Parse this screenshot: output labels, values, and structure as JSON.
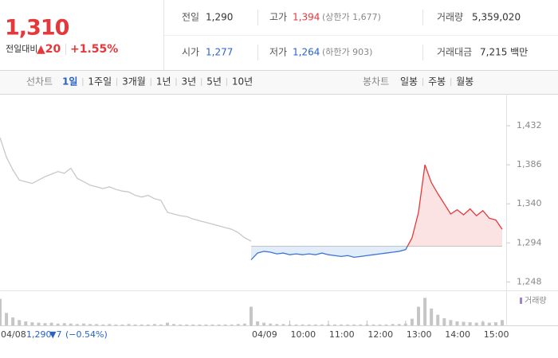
{
  "header": {
    "price": "1,310",
    "change_label": "전일대비",
    "change": "▲20",
    "change_pct": "+1.55%"
  },
  "stats": [
    {
      "label": "전일",
      "value": "1,290"
    },
    {
      "label": "고가",
      "value": "1,394",
      "note": "(상한가 1,677)"
    },
    {
      "label": "거래량",
      "value": "5,359,020"
    },
    {
      "label": "시가",
      "value": "1,277"
    },
    {
      "label": "저가",
      "value": "1,264",
      "note": "(하한가 903)"
    },
    {
      "label": "거래대금",
      "value": "7,215 백만"
    }
  ],
  "toolbar": {
    "line_label": "선차트",
    "line_periods": [
      "1일",
      "1주일",
      "3개월",
      "1년",
      "3년",
      "5년",
      "10년"
    ],
    "selected": 0,
    "candle_label": "봉차트",
    "candle_periods": [
      "일봉",
      "주봉",
      "월봉"
    ]
  },
  "footer": {
    "close": "1,290",
    "change": "▼7",
    "pct": "(−0.54%)"
  },
  "chart_data": {
    "type": "line",
    "xlim": [
      0,
      780
    ],
    "ylim": [
      1238,
      1463
    ],
    "xticks": [
      {
        "value": 0,
        "label": "04/08"
      },
      {
        "value": 390,
        "label": "04/09"
      },
      {
        "value": 450,
        "label": "10:00"
      },
      {
        "value": 510,
        "label": "11:00"
      },
      {
        "value": 570,
        "label": "12:00"
      },
      {
        "value": 630,
        "label": "13:00"
      },
      {
        "value": 690,
        "label": "14:00"
      },
      {
        "value": 750,
        "label": "15:00"
      }
    ],
    "yticks": [
      {
        "value": 1248,
        "label": "1,248"
      },
      {
        "value": 1294,
        "label": "1,294"
      },
      {
        "value": 1340,
        "label": "1,340"
      },
      {
        "value": 1386,
        "label": "1,386"
      },
      {
        "value": 1432,
        "label": "1,432"
      }
    ],
    "base": 1290,
    "series": [
      {
        "color": "#c8c8c8",
        "x": [
          0,
          10,
          20,
          30,
          40,
          50,
          60,
          70,
          80,
          90,
          100,
          110,
          120,
          130,
          140,
          150,
          160,
          170,
          180,
          190,
          200,
          210,
          220,
          230,
          240,
          250,
          260,
          270,
          280,
          290,
          300,
          310,
          320,
          330,
          340,
          350,
          360,
          370,
          380,
          390
        ],
        "values": [
          1418,
          1395,
          1380,
          1368,
          1366,
          1364,
          1368,
          1372,
          1375,
          1378,
          1376,
          1382,
          1370,
          1366,
          1362,
          1360,
          1358,
          1360,
          1357,
          1355,
          1354,
          1350,
          1348,
          1350,
          1346,
          1344,
          1330,
          1328,
          1326,
          1325,
          1322,
          1320,
          1318,
          1316,
          1314,
          1312,
          1310,
          1306,
          1300,
          1296
        ],
        "volumes": [
          600000,
          280000,
          180000,
          120000,
          90000,
          70000,
          60000,
          50000,
          60000,
          40000,
          50000,
          40000,
          30000,
          40000,
          30000,
          30000,
          20000,
          30000,
          20000,
          20000,
          30000,
          20000,
          20000,
          20000,
          30000,
          20000,
          60000,
          30000,
          20000,
          20000,
          20000,
          20000,
          20000,
          20000,
          20000,
          20000,
          20000,
          30000,
          40000,
          80000
        ]
      },
      {
        "color": "#e5383b",
        "color_below": "#3c74d6",
        "fill": "#fbe3e4",
        "fill_below": "#e3ecf9",
        "x": [
          390,
          400,
          410,
          420,
          430,
          440,
          450,
          460,
          470,
          480,
          490,
          500,
          510,
          520,
          530,
          540,
          550,
          560,
          570,
          580,
          590,
          600,
          610,
          620,
          630,
          640,
          650,
          660,
          670,
          680,
          690,
          700,
          710,
          720,
          730,
          740,
          750,
          760,
          770,
          780
        ],
        "values": [
          1274,
          1282,
          1284,
          1283,
          1281,
          1282,
          1280,
          1281,
          1280,
          1281,
          1280,
          1282,
          1280,
          1279,
          1278,
          1279,
          1277,
          1278,
          1279,
          1280,
          1281,
          1282,
          1283,
          1284,
          1286,
          1300,
          1330,
          1386,
          1365,
          1352,
          1340,
          1328,
          1333,
          1327,
          1334,
          1326,
          1332,
          1323,
          1321,
          1310
        ],
        "volumes": [
          420000,
          90000,
          60000,
          40000,
          30000,
          30000,
          20000,
          20000,
          20000,
          20000,
          20000,
          20000,
          20000,
          20000,
          20000,
          20000,
          20000,
          20000,
          20000,
          20000,
          20000,
          20000,
          30000,
          30000,
          40000,
          150000,
          420000,
          620000,
          380000,
          240000,
          160000,
          120000,
          90000,
          80000,
          70000,
          60000,
          80000,
          60000,
          70000,
          120000
        ]
      }
    ],
    "volume": {
      "label": "거래량",
      "color": "#9b86c9",
      "bar_color": "#c6c6c6",
      "lim": [
        0,
        700000
      ]
    }
  }
}
